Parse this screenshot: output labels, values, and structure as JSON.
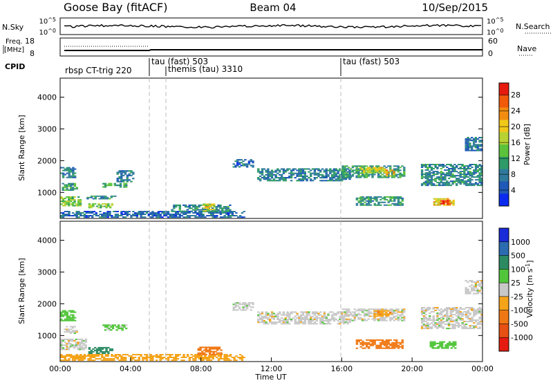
{
  "header": {
    "station": "Goose Bay (fitACF)",
    "beam": "Beam 04",
    "date": "10/Sep/2015"
  },
  "colors": {
    "axis": "#000000",
    "trace": "#000000",
    "divider": "#bbbbbb"
  },
  "strips": {
    "nsky": {
      "label": "N.Sky",
      "tick_top": "10^5",
      "tick_bottom": "10^0",
      "right_label": "N.Search",
      "right_tick_top": "10^5",
      "right_tick_bottom": "10^0"
    },
    "freq": {
      "label_line1": "Freq.",
      "label_line2": "[MHz]",
      "tick_top": "18",
      "tick_bottom": "8",
      "right_label": "Nave",
      "right_tick_top": "60",
      "right_tick_bottom": "0"
    },
    "cpid": {
      "label": "CPID",
      "segments": [
        {
          "name": "rbsp CT-trig 220"
        },
        {
          "name": "tau (fast) 503"
        },
        {
          "name": "themis (tau) 3310"
        },
        {
          "name": "tau (fast) 503"
        }
      ]
    }
  },
  "chart_data": [
    {
      "type": "heatmap",
      "title": "Power",
      "ylabel": "Slant Range [km]",
      "xlabel": "",
      "ylim": [
        180,
        4600
      ],
      "yticks": [
        "1000",
        "2000",
        "3000",
        "4000"
      ],
      "colorbar": {
        "label": "Power [dB]",
        "ticks": [
          "4",
          "8",
          "12",
          "16",
          "20",
          "24",
          "28"
        ],
        "range": [
          0,
          31
        ],
        "colors": [
          "#0a2bef",
          "#1f59b8",
          "#2f7a9c",
          "#2e9a68",
          "#5cc23c",
          "#b8d234",
          "#f0c819",
          "#f28c10",
          "#f05a0a",
          "#e61b10"
        ]
      },
      "series": [
        {
          "t0": 0.0,
          "t1": 1.2,
          "r0": 560,
          "r1": 880,
          "power": 15
        },
        {
          "t0": 0.1,
          "t1": 1.0,
          "r0": 1050,
          "r1": 1300,
          "power": 10
        },
        {
          "t0": 0.0,
          "t1": 0.9,
          "r0": 1450,
          "r1": 1800,
          "power": 8
        },
        {
          "t0": 1.5,
          "t1": 3.3,
          "r0": 780,
          "r1": 900,
          "power": 9
        },
        {
          "t0": 1.6,
          "t1": 3.0,
          "r0": 500,
          "r1": 660,
          "power": 14
        },
        {
          "t0": 2.4,
          "t1": 3.8,
          "r0": 1150,
          "r1": 1300,
          "power": 12
        },
        {
          "t0": 3.2,
          "t1": 4.2,
          "r0": 1320,
          "r1": 1700,
          "power": 7
        },
        {
          "t0": 0.0,
          "t1": 10.5,
          "r0": 200,
          "r1": 420,
          "power": 6
        },
        {
          "t0": 6.3,
          "t1": 9.7,
          "r0": 380,
          "r1": 620,
          "power": 9
        },
        {
          "t0": 8.1,
          "t1": 8.8,
          "r0": 400,
          "r1": 650,
          "power": 18
        },
        {
          "t0": 11.2,
          "t1": 16.5,
          "r0": 1350,
          "r1": 1760,
          "power": 8
        },
        {
          "t0": 16.0,
          "t1": 19.6,
          "r0": 1450,
          "r1": 1850,
          "power": 11
        },
        {
          "t0": 17.0,
          "t1": 18.5,
          "r0": 1600,
          "r1": 1800,
          "power": 18
        },
        {
          "t0": 18.5,
          "t1": 19.0,
          "r0": 1500,
          "r1": 1720,
          "power": 22
        },
        {
          "t0": 16.8,
          "t1": 19.5,
          "r0": 580,
          "r1": 880,
          "power": 10
        },
        {
          "t0": 20.5,
          "t1": 24.0,
          "r0": 1200,
          "r1": 1900,
          "power": 9
        },
        {
          "t0": 21.2,
          "t1": 22.4,
          "r0": 580,
          "r1": 820,
          "power": 20
        },
        {
          "t0": 21.6,
          "t1": 22.2,
          "r0": 620,
          "r1": 760,
          "power": 29
        },
        {
          "t0": 23.0,
          "t1": 24.0,
          "r0": 2300,
          "r1": 2750,
          "power": 7
        },
        {
          "t0": 9.8,
          "t1": 11.0,
          "r0": 1780,
          "r1": 2050,
          "power": 6
        }
      ]
    },
    {
      "type": "heatmap",
      "title": "Velocity",
      "ylabel": "Slant Range [km]",
      "xlabel": "Time UT",
      "ylim": [
        180,
        4600
      ],
      "yticks": [
        "1000",
        "2000",
        "3000",
        "4000"
      ],
      "xticks": [
        "00:00",
        "04:00",
        "08:00",
        "12:00",
        "16:00",
        "20:00",
        "00:00"
      ],
      "xlim": [
        0,
        24
      ],
      "colorbar": {
        "label": "Velocity [m s^-1]",
        "ticks": [
          "1000",
          "500",
          "100",
          "25",
          "-25",
          "-100",
          "-500",
          "-1000"
        ],
        "colors": [
          "#1a2bd8",
          "#2b6bb0",
          "#2c8a63",
          "#52c63b",
          "#c8c8c8",
          "#f5a41a",
          "#f07814",
          "#e65012",
          "#e61b10"
        ]
      },
      "series": [
        {
          "t0": 0.0,
          "t1": 1.5,
          "r0": 540,
          "r1": 900,
          "velocity": 0
        },
        {
          "t0": 0.2,
          "t1": 1.0,
          "r0": 1050,
          "r1": 1300,
          "velocity": 0
        },
        {
          "t0": 0.0,
          "t1": 0.9,
          "r0": 1450,
          "r1": 1800,
          "velocity": 60
        },
        {
          "t0": 1.6,
          "t1": 3.0,
          "r0": 420,
          "r1": 640,
          "velocity": 150
        },
        {
          "t0": 2.4,
          "t1": 3.8,
          "r0": 1150,
          "r1": 1350,
          "velocity": 40
        },
        {
          "t0": 0.0,
          "t1": 10.5,
          "r0": 200,
          "r1": 420,
          "velocity": -60
        },
        {
          "t0": 7.8,
          "t1": 9.2,
          "r0": 380,
          "r1": 650,
          "velocity": -300
        },
        {
          "t0": 11.2,
          "t1": 16.5,
          "r0": 1350,
          "r1": 1760,
          "velocity": 0
        },
        {
          "t0": 16.0,
          "t1": 19.6,
          "r0": 1450,
          "r1": 1850,
          "velocity": 0
        },
        {
          "t0": 17.8,
          "t1": 18.8,
          "r0": 1600,
          "r1": 1800,
          "velocity": -80
        },
        {
          "t0": 16.8,
          "t1": 19.5,
          "r0": 580,
          "r1": 880,
          "velocity": -150
        },
        {
          "t0": 20.5,
          "t1": 24.0,
          "r0": 1200,
          "r1": 1900,
          "velocity": 0
        },
        {
          "t0": 21.0,
          "t1": 22.5,
          "r0": 580,
          "r1": 820,
          "velocity": 60
        },
        {
          "t0": 23.0,
          "t1": 24.0,
          "r0": 2300,
          "r1": 2750,
          "velocity": 0
        },
        {
          "t0": 9.8,
          "t1": 11.0,
          "r0": 1780,
          "r1": 2050,
          "velocity": 0
        }
      ]
    }
  ]
}
